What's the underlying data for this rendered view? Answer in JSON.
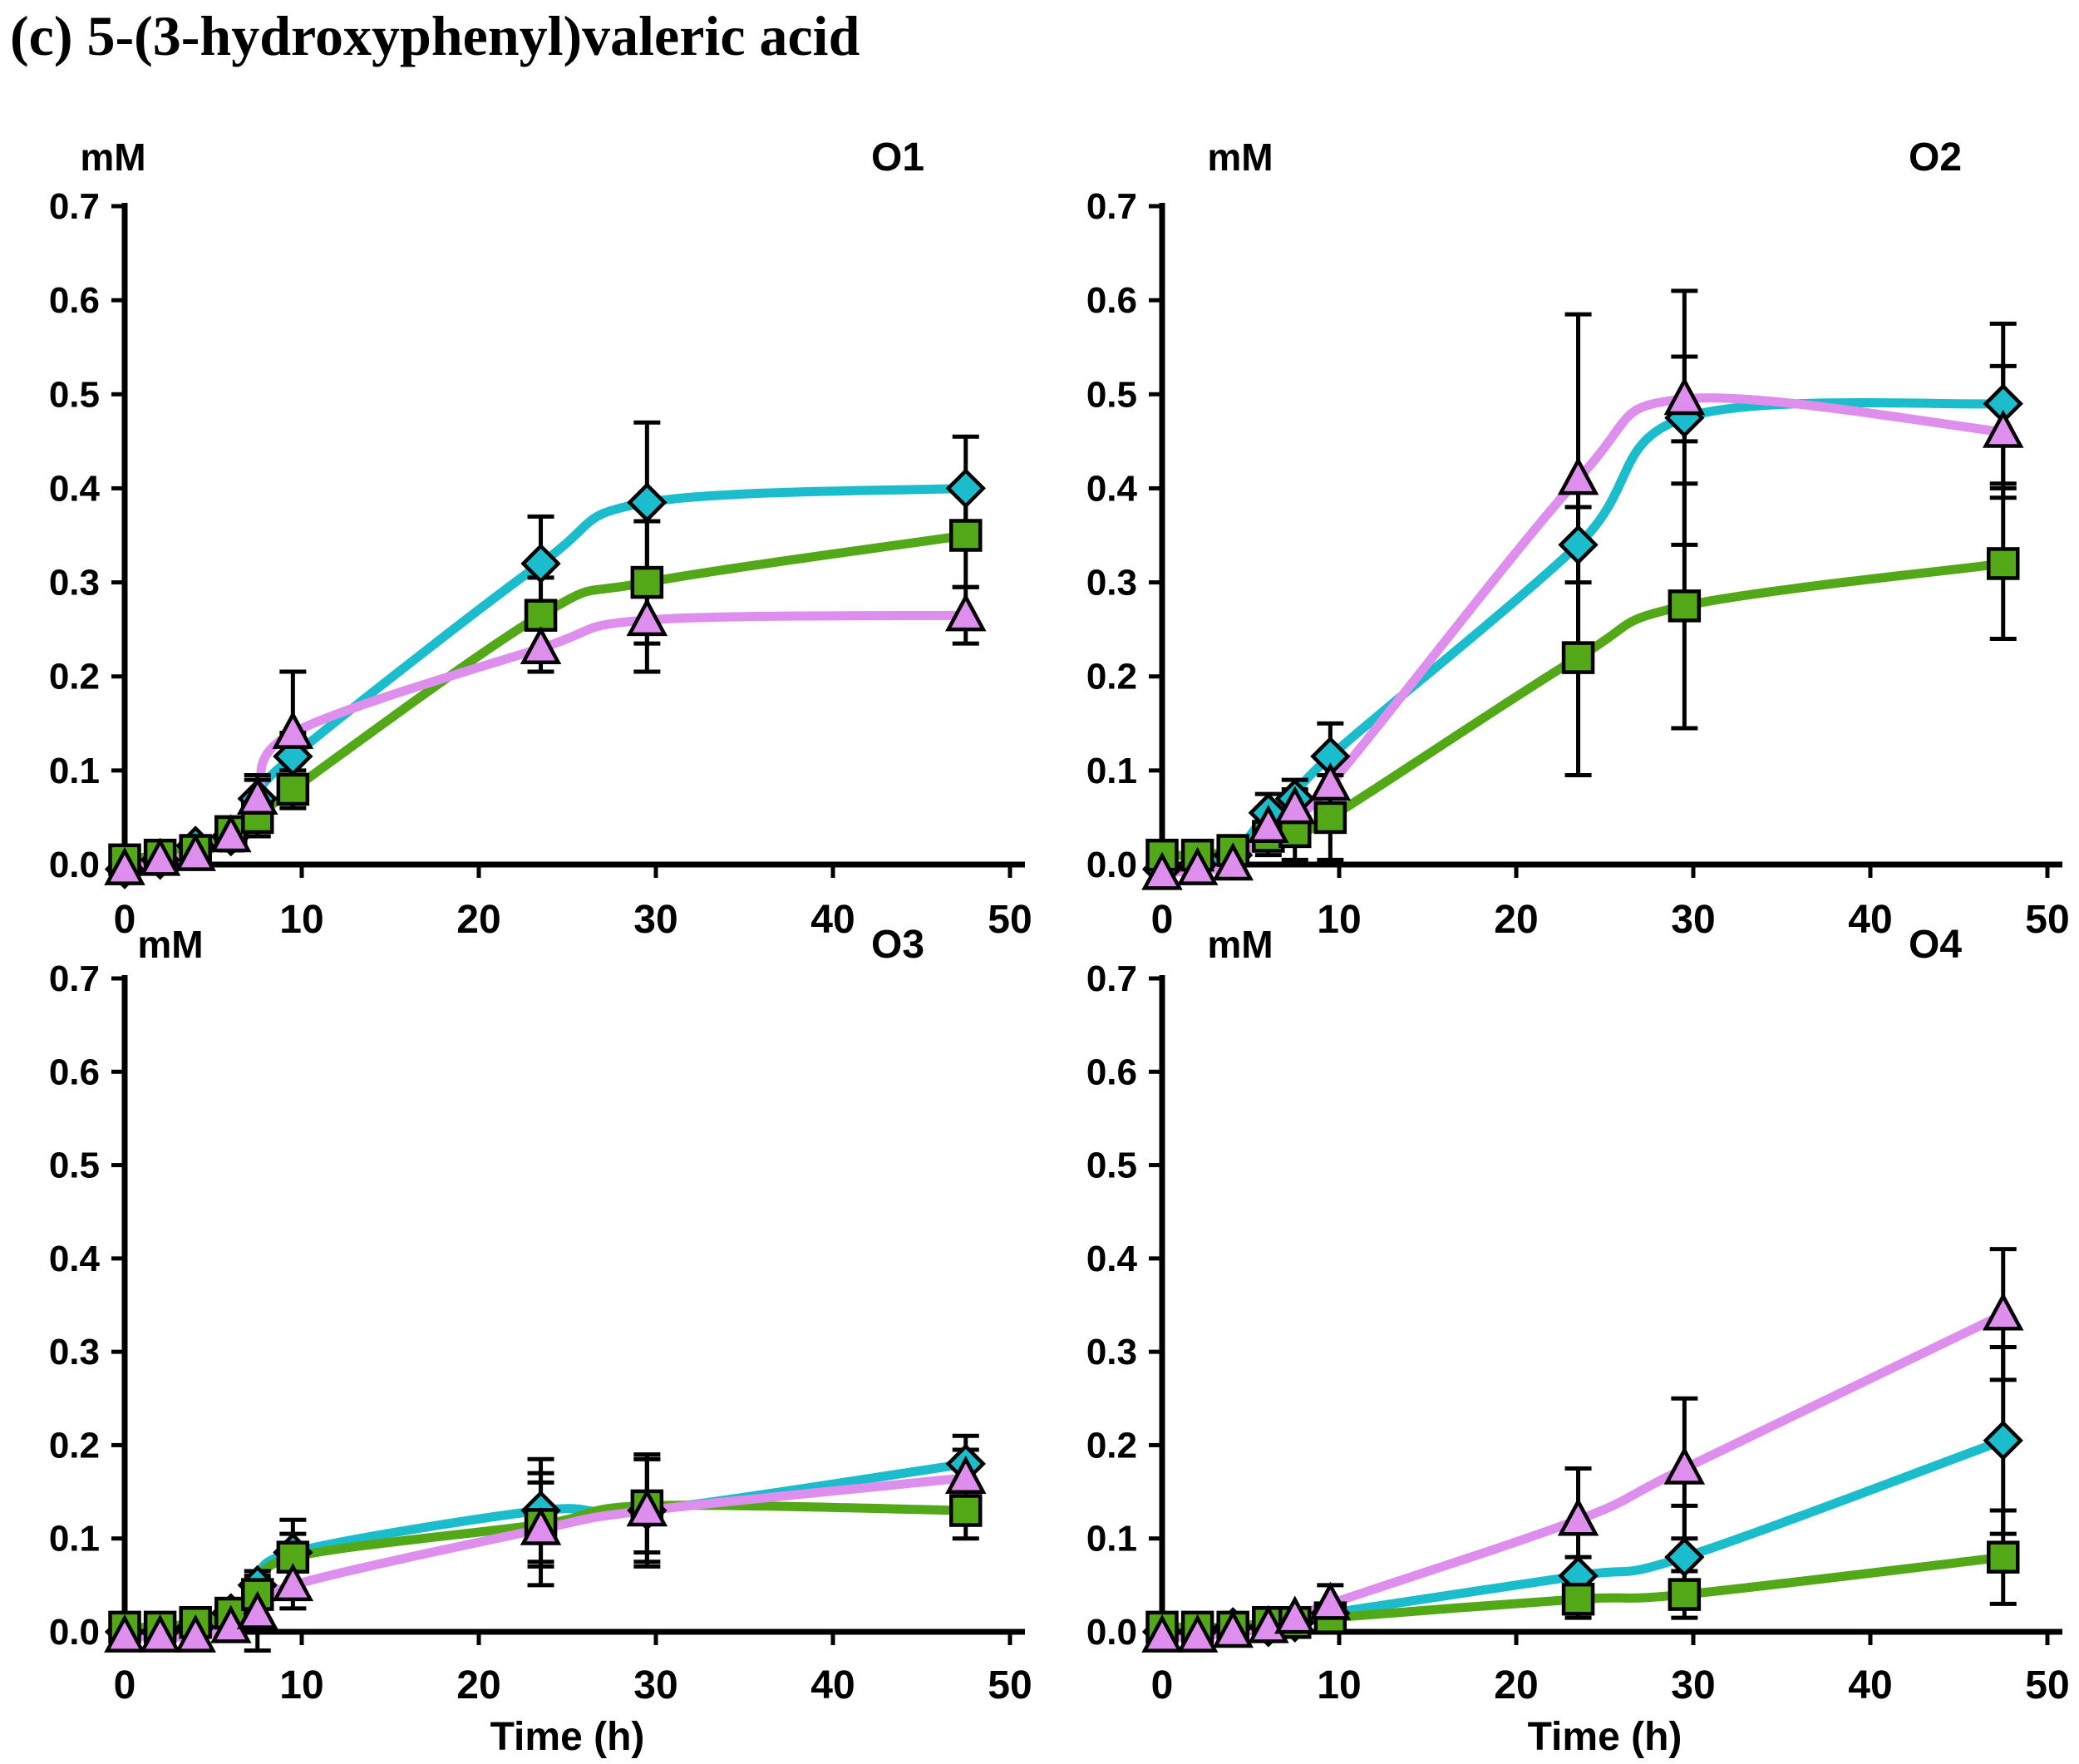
{
  "title": "(c) 5-(3-hydroxyphenyl)valeric acid",
  "axes": {
    "y_unit_label": "mM",
    "x_axis_title": "Time (h)",
    "x_ticks": [
      0,
      10,
      20,
      30,
      40,
      50
    ],
    "y_tick_labels": [
      "0.0",
      "0.1",
      "0.2",
      "0.3",
      "0.4",
      "0.5",
      "0.6",
      "0.7"
    ],
    "x_range": [
      0,
      50
    ],
    "y_range": [
      0,
      0.7
    ],
    "grid": "off",
    "legend": "none"
  },
  "colors": {
    "cyan_series": "#1BBCCB",
    "green_series": "#53A818",
    "violet_series": "#DE8FED",
    "axis": "#000000"
  },
  "chart_data": [
    {
      "type": "line",
      "panel_label": "O1",
      "x": [
        0,
        2,
        4,
        6,
        7.5,
        9.5,
        23.5,
        29.5,
        47.5
      ],
      "series": [
        {
          "name": "cyan-diamond",
          "marker": "diamond",
          "color_key": "cyan_series",
          "values": [
            -0.005,
            0.005,
            0.02,
            0.03,
            0.07,
            0.115,
            0.32,
            0.385,
            0.4
          ],
          "errors": [
            0.005,
            0.005,
            0.01,
            0.015,
            0.02,
            0.025,
            0.05,
            0.085,
            0.055
          ]
        },
        {
          "name": "green-square",
          "marker": "square",
          "color_key": "green_series",
          "values": [
            0.005,
            0.01,
            0.015,
            0.035,
            0.05,
            0.08,
            0.265,
            0.3,
            0.35
          ],
          "errors": [
            0.005,
            0.005,
            0.01,
            0.015,
            0.02,
            0.02,
            0.04,
            0.065,
            0.055
          ]
        },
        {
          "name": "violet-triangle",
          "marker": "triangle",
          "color_key": "violet_series",
          "values": [
            -0.005,
            0.005,
            0.01,
            0.03,
            0.07,
            0.14,
            0.23,
            0.26,
            0.265
          ],
          "errors": [
            0.005,
            0.005,
            0.01,
            0.015,
            0.025,
            0.065,
            0.025,
            0.055,
            0.03
          ]
        }
      ]
    },
    {
      "type": "line",
      "panel_label": "O2",
      "x": [
        0,
        2,
        4,
        6,
        7.5,
        9.5,
        23.5,
        29.5,
        47.5
      ],
      "series": [
        {
          "name": "cyan-diamond",
          "marker": "diamond",
          "color_key": "cyan_series",
          "values": [
            -0.005,
            0.0,
            0.01,
            0.055,
            0.07,
            0.115,
            0.34,
            0.475,
            0.49
          ],
          "errors": [
            0.005,
            0.005,
            0.01,
            0.02,
            0.02,
            0.035,
            0.04,
            0.135,
            0.085
          ]
        },
        {
          "name": "green-square",
          "marker": "square",
          "color_key": "green_series",
          "values": [
            0.01,
            0.01,
            0.015,
            0.03,
            0.035,
            0.05,
            0.22,
            0.275,
            0.32
          ],
          "errors": [
            0.005,
            0.005,
            0.01,
            0.02,
            0.03,
            0.045,
            0.125,
            0.13,
            0.08
          ]
        },
        {
          "name": "violet-triangle",
          "marker": "triangle",
          "color_key": "violet_series",
          "values": [
            -0.01,
            -0.005,
            0.0,
            0.04,
            0.06,
            0.085,
            0.41,
            0.495,
            0.46
          ],
          "errors": [
            0.005,
            0.005,
            0.005,
            0.015,
            0.02,
            0.025,
            0.175,
            0.045,
            0.07
          ]
        }
      ]
    },
    {
      "type": "line",
      "panel_label": "O3",
      "x": [
        0,
        2,
        4,
        6,
        7.5,
        9.5,
        23.5,
        29.5,
        47.5
      ],
      "series": [
        {
          "name": "cyan-diamond",
          "marker": "diamond",
          "color_key": "cyan_series",
          "values": [
            0.0,
            0.0,
            0.005,
            0.02,
            0.05,
            0.085,
            0.13,
            0.13,
            0.18
          ],
          "errors": [
            0.005,
            0.005,
            0.005,
            0.01,
            0.015,
            0.02,
            0.055,
            0.055,
            0.03
          ]
        },
        {
          "name": "green-square",
          "marker": "square",
          "color_key": "green_series",
          "values": [
            0.005,
            0.005,
            0.01,
            0.02,
            0.04,
            0.08,
            0.115,
            0.135,
            0.13
          ],
          "errors": [
            0.005,
            0.005,
            0.005,
            0.01,
            0.015,
            0.04,
            0.045,
            0.05,
            0.03
          ]
        },
        {
          "name": "violet-triangle",
          "marker": "triangle",
          "color_key": "violet_series",
          "values": [
            -0.005,
            -0.005,
            -0.005,
            0.005,
            0.02,
            0.05,
            0.11,
            0.13,
            0.165
          ],
          "errors": [
            0.005,
            0.005,
            0.005,
            0.01,
            0.04,
            0.025,
            0.06,
            0.06,
            0.03
          ]
        }
      ]
    },
    {
      "type": "line",
      "panel_label": "O4",
      "x": [
        0,
        2,
        4,
        6,
        7.5,
        9.5,
        23.5,
        29.5,
        47.5
      ],
      "series": [
        {
          "name": "cyan-diamond",
          "marker": "diamond",
          "color_key": "cyan_series",
          "values": [
            0.0,
            0.0,
            0.005,
            0.005,
            0.01,
            0.02,
            0.06,
            0.08,
            0.205
          ],
          "errors": [
            0.005,
            0.005,
            0.005,
            0.005,
            0.01,
            0.01,
            0.02,
            0.055,
            0.1
          ]
        },
        {
          "name": "green-square",
          "marker": "square",
          "color_key": "green_series",
          "values": [
            0.005,
            0.005,
            0.005,
            0.01,
            0.01,
            0.015,
            0.035,
            0.04,
            0.08
          ],
          "errors": [
            0.005,
            0.005,
            0.005,
            0.005,
            0.01,
            0.01,
            0.02,
            0.025,
            0.05
          ]
        },
        {
          "name": "violet-triangle",
          "marker": "triangle",
          "color_key": "violet_series",
          "values": [
            -0.005,
            -0.005,
            0.0,
            0.005,
            0.015,
            0.03,
            0.12,
            0.175,
            0.34
          ],
          "errors": [
            0.005,
            0.005,
            0.005,
            0.005,
            0.01,
            0.02,
            0.055,
            0.075,
            0.07
          ]
        }
      ]
    }
  ]
}
